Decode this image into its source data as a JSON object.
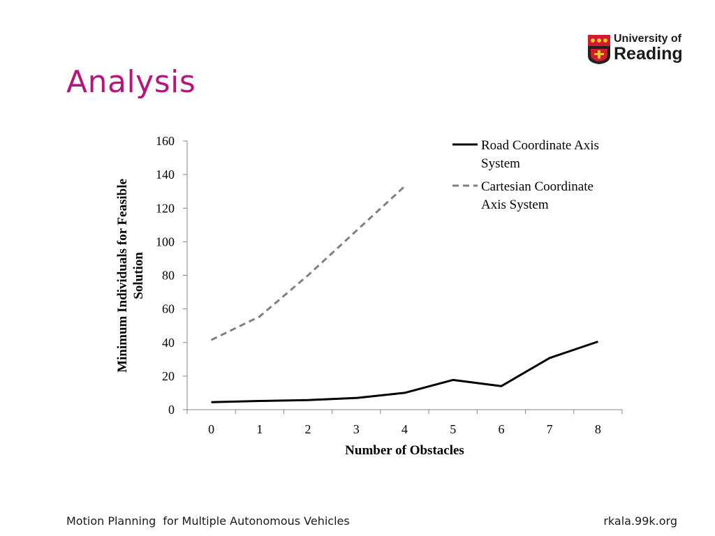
{
  "slide": {
    "title": "Analysis",
    "footer_left": "Motion Planning  for Multiple Autonomous Vehicles",
    "footer_right": "rkala.99k.org"
  },
  "logo": {
    "line1": "University of",
    "line2": "Reading",
    "shield_red": "#d7192d",
    "shield_dark": "#222222",
    "shield_gold": "#f2c230"
  },
  "chart_data": {
    "type": "line",
    "title": "",
    "xlabel": "Number of Obstacles",
    "ylabel": "Minimum Individuals for Feasible Solution",
    "categories": [
      "0",
      "1",
      "2",
      "3",
      "4",
      "5",
      "6",
      "7",
      "8"
    ],
    "ylim": [
      0,
      160
    ],
    "yticks": [
      0,
      20,
      40,
      60,
      80,
      100,
      120,
      140,
      160
    ],
    "grid": false,
    "legend": "top-right",
    "series": [
      {
        "name": "Road Coordinate Axis System",
        "values": [
          4.5,
          5.2,
          5.7,
          7,
          10,
          17.7,
          14,
          30.8,
          40.5
        ],
        "color": "#000000",
        "dash": "solid"
      },
      {
        "name": "Cartesian Coordinate Axis System",
        "values": [
          41.5,
          55.5,
          80,
          106.5,
          133,
          null,
          null,
          null,
          null
        ],
        "color": "#808080",
        "dash": "dashed"
      }
    ]
  }
}
